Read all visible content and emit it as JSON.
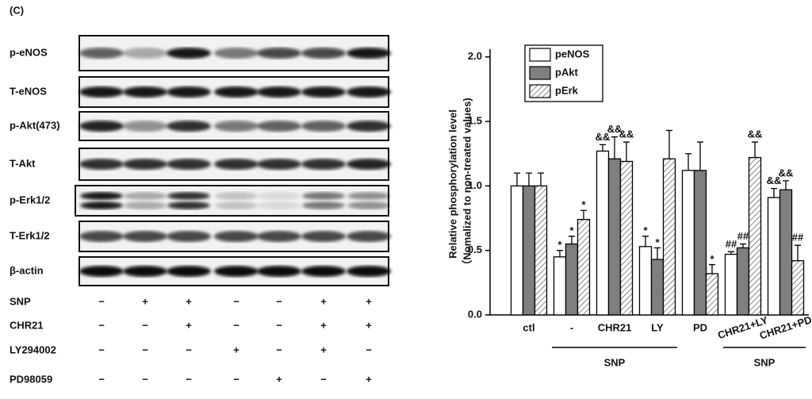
{
  "panel_label": "(C)",
  "blot": {
    "rows": [
      "p-eNOS",
      "T-eNOS",
      "p-Akt(473)",
      "T-Akt",
      "p-Erk1/2",
      "T-Erk1/2",
      "β-actin"
    ],
    "treatments": [
      {
        "name": "SNP",
        "signs": [
          "−",
          "+",
          "+",
          "−",
          "−",
          "+",
          "+"
        ]
      },
      {
        "name": "CHR21",
        "signs": [
          "−",
          "−",
          "+",
          "−",
          "−",
          "+",
          "+"
        ]
      },
      {
        "name": "LY294002",
        "signs": [
          "−",
          "−",
          "−",
          "+",
          "−",
          "+",
          "−"
        ]
      },
      {
        "name": "PD98059",
        "signs": [
          "−",
          "−",
          "−",
          "−",
          "+",
          "−",
          "+"
        ]
      }
    ]
  },
  "chart_data": {
    "type": "bar",
    "ylabel": [
      "Relative phosphorylation level",
      "（Nomalized to non-treated values)"
    ],
    "categories": [
      "ctl",
      "-",
      "CHR21",
      "LY",
      "PD",
      "CHR21+LY",
      "CHR21+PD"
    ],
    "groups": [
      {
        "label": "SNP",
        "span": [
          1,
          3
        ]
      },
      {
        "label": "SNP",
        "span": [
          5,
          6
        ]
      }
    ],
    "series": [
      {
        "name": "peNOS",
        "color": "#ffffff",
        "pattern": "solid",
        "values": [
          1.0,
          0.45,
          1.27,
          0.53,
          1.12,
          0.47,
          0.91
        ],
        "errors": [
          0.1,
          0.05,
          0.05,
          0.08,
          0.13,
          0.02,
          0.07
        ],
        "marks": [
          null,
          "*",
          "&&",
          "*",
          null,
          "##",
          "&&"
        ]
      },
      {
        "name": "pAkt",
        "color": "#7f7f7f",
        "pattern": "solid",
        "values": [
          1.0,
          0.55,
          1.21,
          0.43,
          1.12,
          0.52,
          0.97
        ],
        "errors": [
          0.1,
          0.06,
          0.17,
          0.09,
          0.22,
          0.03,
          0.07
        ],
        "marks": [
          null,
          "*",
          "&&",
          "*",
          null,
          "##",
          "&&"
        ]
      },
      {
        "name": "pErk",
        "color": "#ffffff",
        "pattern": "hatch",
        "values": [
          1.0,
          0.74,
          1.19,
          1.21,
          0.32,
          1.22,
          0.42
        ],
        "errors": [
          0.1,
          0.07,
          0.15,
          0.22,
          0.07,
          0.12,
          0.12
        ],
        "marks": [
          null,
          "*",
          "&&",
          null,
          "*",
          "&&",
          "##"
        ]
      }
    ],
    "ylim": [
      0,
      2.06
    ],
    "yticks": [
      {
        "value": 0,
        "label": "0.0"
      },
      {
        "value": 0.5,
        "label": "0.5"
      },
      {
        "value": 1,
        "label": "1.0"
      },
      {
        "value": 1.5,
        "label": "1.5"
      },
      {
        "value": 2,
        "label": "2.0"
      }
    ],
    "legend": "top-left"
  }
}
